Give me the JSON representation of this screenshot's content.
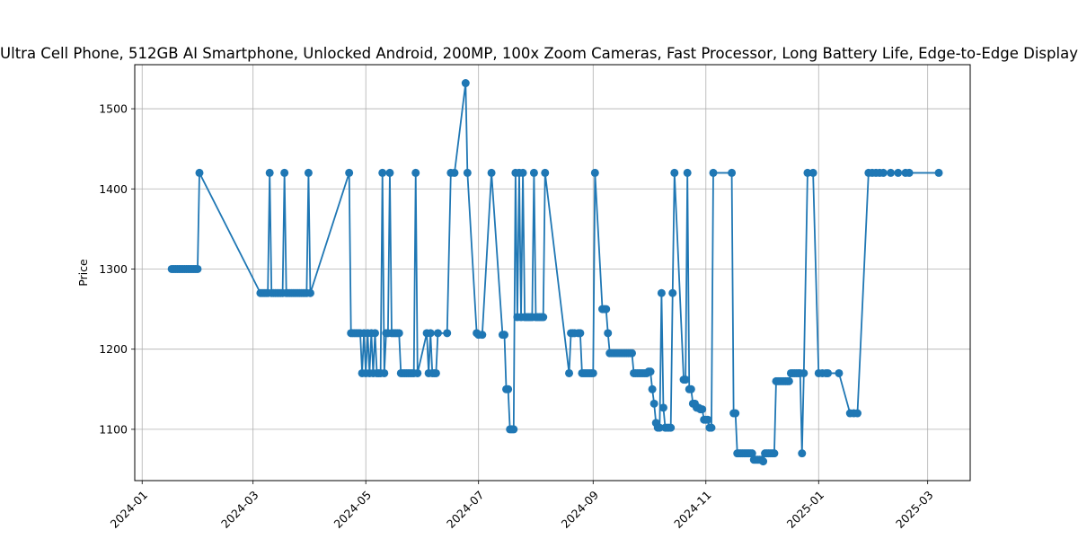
{
  "chart_data": {
    "type": "line",
    "title": "Ultra Cell Phone, 512GB AI Smartphone, Unlocked Android, 200MP, 100x Zoom Cameras, Fast Processor, Long Battery Life, Edge-to-Edge Display",
    "xlabel": "",
    "ylabel": "Price",
    "x_type": "date",
    "xlim": [
      "2023-12-28",
      "2025-03-24"
    ],
    "ylim": [
      1036,
      1555
    ],
    "xticks": [
      "2024-01",
      "2024-03",
      "2024-05",
      "2024-07",
      "2024-09",
      "2024-11",
      "2025-01",
      "2025-03"
    ],
    "yticks": [
      1100,
      1200,
      1300,
      1400,
      1500
    ],
    "grid": true,
    "color": "#1f77b4",
    "series": [
      {
        "points": [
          [
            "2024-01-17",
            1300
          ],
          [
            "2024-01-18",
            1300
          ],
          [
            "2024-01-19",
            1300
          ],
          [
            "2024-01-20",
            1300
          ],
          [
            "2024-01-21",
            1300
          ],
          [
            "2024-01-22",
            1300
          ],
          [
            "2024-01-23",
            1300
          ],
          [
            "2024-01-24",
            1300
          ],
          [
            "2024-01-25",
            1300
          ],
          [
            "2024-01-26",
            1300
          ],
          [
            "2024-01-27",
            1300
          ],
          [
            "2024-01-28",
            1300
          ],
          [
            "2024-01-29",
            1300
          ],
          [
            "2024-01-30",
            1300
          ],
          [
            "2024-01-31",
            1300
          ],
          [
            "2024-02-01",
            1420
          ],
          [
            "2024-03-05",
            1270
          ],
          [
            "2024-03-06",
            1270
          ],
          [
            "2024-03-07",
            1270
          ],
          [
            "2024-03-08",
            1270
          ],
          [
            "2024-03-09",
            1270
          ],
          [
            "2024-03-10",
            1420
          ],
          [
            "2024-03-11",
            1270
          ],
          [
            "2024-03-12",
            1270
          ],
          [
            "2024-03-13",
            1270
          ],
          [
            "2024-03-14",
            1270
          ],
          [
            "2024-03-15",
            1270
          ],
          [
            "2024-03-16",
            1270
          ],
          [
            "2024-03-17",
            1270
          ],
          [
            "2024-03-18",
            1420
          ],
          [
            "2024-03-19",
            1270
          ],
          [
            "2024-03-20",
            1270
          ],
          [
            "2024-03-21",
            1270
          ],
          [
            "2024-03-22",
            1270
          ],
          [
            "2024-03-23",
            1270
          ],
          [
            "2024-03-24",
            1270
          ],
          [
            "2024-03-25",
            1270
          ],
          [
            "2024-03-26",
            1270
          ],
          [
            "2024-03-27",
            1270
          ],
          [
            "2024-03-28",
            1270
          ],
          [
            "2024-03-29",
            1270
          ],
          [
            "2024-03-30",
            1270
          ],
          [
            "2024-03-31",
            1420
          ],
          [
            "2024-04-01",
            1270
          ],
          [
            "2024-04-22",
            1420
          ],
          [
            "2024-04-23",
            1220
          ],
          [
            "2024-04-24",
            1220
          ],
          [
            "2024-04-25",
            1220
          ],
          [
            "2024-04-26",
            1220
          ],
          [
            "2024-04-27",
            1220
          ],
          [
            "2024-04-28",
            1220
          ],
          [
            "2024-04-29",
            1170
          ],
          [
            "2024-04-30",
            1220
          ],
          [
            "2024-05-01",
            1170
          ],
          [
            "2024-05-02",
            1220
          ],
          [
            "2024-05-03",
            1170
          ],
          [
            "2024-05-04",
            1220
          ],
          [
            "2024-05-05",
            1170
          ],
          [
            "2024-05-06",
            1220
          ],
          [
            "2024-05-07",
            1170
          ],
          [
            "2024-05-08",
            1170
          ],
          [
            "2024-05-09",
            1170
          ],
          [
            "2024-05-10",
            1420
          ],
          [
            "2024-05-11",
            1170
          ],
          [
            "2024-05-12",
            1220
          ],
          [
            "2024-05-13",
            1220
          ],
          [
            "2024-05-14",
            1420
          ],
          [
            "2024-05-15",
            1220
          ],
          [
            "2024-05-16",
            1220
          ],
          [
            "2024-05-17",
            1220
          ],
          [
            "2024-05-18",
            1220
          ],
          [
            "2024-05-19",
            1220
          ],
          [
            "2024-05-20",
            1170
          ],
          [
            "2024-05-21",
            1170
          ],
          [
            "2024-05-22",
            1170
          ],
          [
            "2024-05-23",
            1170
          ],
          [
            "2024-05-24",
            1170
          ],
          [
            "2024-05-25",
            1170
          ],
          [
            "2024-05-26",
            1170
          ],
          [
            "2024-05-27",
            1170
          ],
          [
            "2024-05-28",
            1420
          ],
          [
            "2024-05-29",
            1170
          ],
          [
            "2024-06-03",
            1220
          ],
          [
            "2024-06-04",
            1170
          ],
          [
            "2024-06-05",
            1220
          ],
          [
            "2024-06-06",
            1170
          ],
          [
            "2024-06-07",
            1170
          ],
          [
            "2024-06-08",
            1170
          ],
          [
            "2024-06-09",
            1220
          ],
          [
            "2024-06-14",
            1220
          ],
          [
            "2024-06-16",
            1420
          ],
          [
            "2024-06-18",
            1420
          ],
          [
            "2024-06-24",
            1532
          ],
          [
            "2024-06-25",
            1420
          ],
          [
            "2024-06-30",
            1220
          ],
          [
            "2024-07-01",
            1218
          ],
          [
            "2024-07-03",
            1218
          ],
          [
            "2024-07-08",
            1420
          ],
          [
            "2024-07-14",
            1218
          ],
          [
            "2024-07-15",
            1218
          ],
          [
            "2024-07-16",
            1150
          ],
          [
            "2024-07-17",
            1150
          ],
          [
            "2024-07-18",
            1100
          ],
          [
            "2024-07-19",
            1100
          ],
          [
            "2024-07-20",
            1100
          ],
          [
            "2024-07-21",
            1420
          ],
          [
            "2024-07-22",
            1240
          ],
          [
            "2024-07-23",
            1420
          ],
          [
            "2024-07-24",
            1240
          ],
          [
            "2024-07-25",
            1420
          ],
          [
            "2024-07-26",
            1240
          ],
          [
            "2024-07-27",
            1240
          ],
          [
            "2024-07-28",
            1240
          ],
          [
            "2024-07-29",
            1240
          ],
          [
            "2024-07-30",
            1240
          ],
          [
            "2024-07-31",
            1420
          ],
          [
            "2024-08-01",
            1240
          ],
          [
            "2024-08-02",
            1240
          ],
          [
            "2024-08-03",
            1240
          ],
          [
            "2024-08-04",
            1240
          ],
          [
            "2024-08-05",
            1240
          ],
          [
            "2024-08-06",
            1420
          ],
          [
            "2024-08-19",
            1170
          ],
          [
            "2024-08-20",
            1220
          ],
          [
            "2024-08-21",
            1220
          ],
          [
            "2024-08-22",
            1220
          ],
          [
            "2024-08-24",
            1220
          ],
          [
            "2024-08-25",
            1220
          ],
          [
            "2024-08-26",
            1170
          ],
          [
            "2024-08-27",
            1170
          ],
          [
            "2024-08-28",
            1170
          ],
          [
            "2024-08-29",
            1170
          ],
          [
            "2024-08-30",
            1170
          ],
          [
            "2024-08-31",
            1170
          ],
          [
            "2024-09-01",
            1170
          ],
          [
            "2024-09-02",
            1420
          ],
          [
            "2024-09-06",
            1250
          ],
          [
            "2024-09-07",
            1250
          ],
          [
            "2024-09-08",
            1250
          ],
          [
            "2024-09-09",
            1220
          ],
          [
            "2024-09-10",
            1195
          ],
          [
            "2024-09-11",
            1195
          ],
          [
            "2024-09-12",
            1195
          ],
          [
            "2024-09-13",
            1195
          ],
          [
            "2024-09-14",
            1195
          ],
          [
            "2024-09-15",
            1195
          ],
          [
            "2024-09-16",
            1195
          ],
          [
            "2024-09-17",
            1195
          ],
          [
            "2024-09-18",
            1195
          ],
          [
            "2024-09-19",
            1195
          ],
          [
            "2024-09-20",
            1195
          ],
          [
            "2024-09-21",
            1195
          ],
          [
            "2024-09-22",
            1195
          ],
          [
            "2024-09-23",
            1170
          ],
          [
            "2024-09-24",
            1170
          ],
          [
            "2024-09-25",
            1170
          ],
          [
            "2024-09-26",
            1170
          ],
          [
            "2024-09-27",
            1170
          ],
          [
            "2024-09-28",
            1170
          ],
          [
            "2024-09-29",
            1170
          ],
          [
            "2024-09-30",
            1170
          ],
          [
            "2024-10-01",
            1172
          ],
          [
            "2024-10-02",
            1172
          ],
          [
            "2024-10-03",
            1150
          ],
          [
            "2024-10-04",
            1132
          ],
          [
            "2024-10-05",
            1108
          ],
          [
            "2024-10-06",
            1102
          ],
          [
            "2024-10-07",
            1102
          ],
          [
            "2024-10-08",
            1270
          ],
          [
            "2024-10-09",
            1127
          ],
          [
            "2024-10-10",
            1102
          ],
          [
            "2024-10-11",
            1102
          ],
          [
            "2024-10-12",
            1102
          ],
          [
            "2024-10-13",
            1102
          ],
          [
            "2024-10-14",
            1270
          ],
          [
            "2024-10-15",
            1420
          ],
          [
            "2024-10-20",
            1162
          ],
          [
            "2024-10-21",
            1162
          ],
          [
            "2024-10-22",
            1420
          ],
          [
            "2024-10-23",
            1150
          ],
          [
            "2024-10-24",
            1150
          ],
          [
            "2024-10-25",
            1132
          ],
          [
            "2024-10-26",
            1132
          ],
          [
            "2024-10-27",
            1127
          ],
          [
            "2024-10-28",
            1127
          ],
          [
            "2024-10-29",
            1125
          ],
          [
            "2024-10-30",
            1125
          ],
          [
            "2024-10-31",
            1112
          ],
          [
            "2024-11-01",
            1112
          ],
          [
            "2024-11-02",
            1112
          ],
          [
            "2024-11-03",
            1102
          ],
          [
            "2024-11-04",
            1102
          ],
          [
            "2024-11-05",
            1420
          ],
          [
            "2024-11-15",
            1420
          ],
          [
            "2024-11-16",
            1120
          ],
          [
            "2024-11-17",
            1120
          ],
          [
            "2024-11-18",
            1070
          ],
          [
            "2024-11-19",
            1070
          ],
          [
            "2024-11-20",
            1070
          ],
          [
            "2024-11-21",
            1070
          ],
          [
            "2024-11-22",
            1070
          ],
          [
            "2024-11-23",
            1070
          ],
          [
            "2024-11-24",
            1070
          ],
          [
            "2024-11-25",
            1070
          ],
          [
            "2024-11-26",
            1070
          ],
          [
            "2024-11-27",
            1062
          ],
          [
            "2024-11-28",
            1062
          ],
          [
            "2024-11-29",
            1062
          ],
          [
            "2024-11-30",
            1062
          ],
          [
            "2024-12-01",
            1062
          ],
          [
            "2024-12-02",
            1060
          ],
          [
            "2024-12-03",
            1070
          ],
          [
            "2024-12-04",
            1070
          ],
          [
            "2024-12-05",
            1070
          ],
          [
            "2024-12-06",
            1070
          ],
          [
            "2024-12-07",
            1070
          ],
          [
            "2024-12-08",
            1070
          ],
          [
            "2024-12-09",
            1160
          ],
          [
            "2024-12-10",
            1160
          ],
          [
            "2024-12-11",
            1160
          ],
          [
            "2024-12-12",
            1160
          ],
          [
            "2024-12-13",
            1160
          ],
          [
            "2024-12-14",
            1160
          ],
          [
            "2024-12-15",
            1160
          ],
          [
            "2024-12-16",
            1160
          ],
          [
            "2024-12-17",
            1170
          ],
          [
            "2024-12-18",
            1170
          ],
          [
            "2024-12-19",
            1170
          ],
          [
            "2024-12-20",
            1170
          ],
          [
            "2024-12-21",
            1170
          ],
          [
            "2024-12-22",
            1170
          ],
          [
            "2024-12-23",
            1070
          ],
          [
            "2024-12-24",
            1170
          ],
          [
            "2024-12-26",
            1420
          ],
          [
            "2024-12-29",
            1420
          ],
          [
            "2025-01-01",
            1170
          ],
          [
            "2025-01-03",
            1170
          ],
          [
            "2025-01-05",
            1170
          ],
          [
            "2025-01-06",
            1170
          ],
          [
            "2025-01-12",
            1170
          ],
          [
            "2025-01-18",
            1120
          ],
          [
            "2025-01-20",
            1120
          ],
          [
            "2025-01-22",
            1120
          ],
          [
            "2025-01-28",
            1420
          ],
          [
            "2025-01-30",
            1420
          ],
          [
            "2025-02-01",
            1420
          ],
          [
            "2025-02-03",
            1420
          ],
          [
            "2025-02-05",
            1420
          ],
          [
            "2025-02-09",
            1420
          ],
          [
            "2025-02-13",
            1420
          ],
          [
            "2025-02-17",
            1420
          ],
          [
            "2025-02-19",
            1420
          ],
          [
            "2025-03-07",
            1420
          ]
        ]
      }
    ]
  }
}
